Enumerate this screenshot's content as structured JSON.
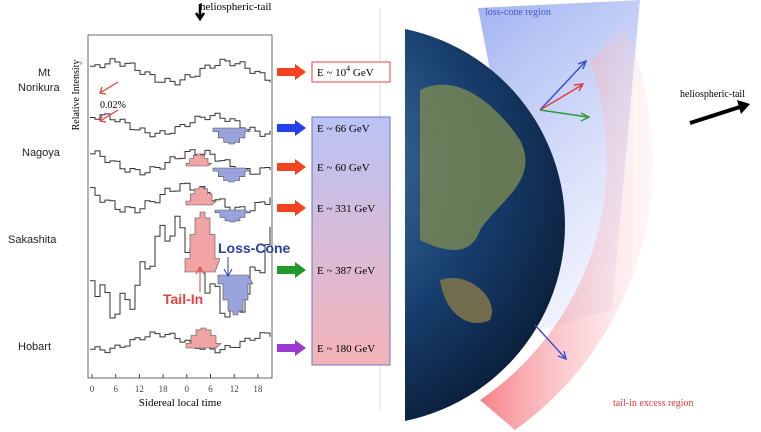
{
  "top_label": "heliospheric-tail",
  "y_axis_label": "Relative Intensity",
  "scale_label": "0.02%",
  "stations": [
    "Mt",
    "Norikura",
    "Nagoya",
    "Sakashita",
    "Hobart"
  ],
  "energies": [
    {
      "base": "E ~ 10",
      "sup": "4",
      "unit": " GeV"
    },
    "E ~ 66 GeV",
    "E ~ 60 GeV",
    "E ~ 331 GeV",
    "E ~ 387 GeV",
    "E ~ 180 GeV"
  ],
  "tail_in": "Tail-In",
  "loss_cone": "Loss-Cone",
  "x_ticks": [
    "0",
    "6",
    "12",
    "18",
    "0",
    "6",
    "12",
    "18"
  ],
  "x_axis_label": "Sidereal local time",
  "globe_labels": {
    "loss_cone_region": "loss-cone region",
    "heliospheric_tail": "heliospheric-tail",
    "tail_in_region": "tail-in excess region"
  }
}
